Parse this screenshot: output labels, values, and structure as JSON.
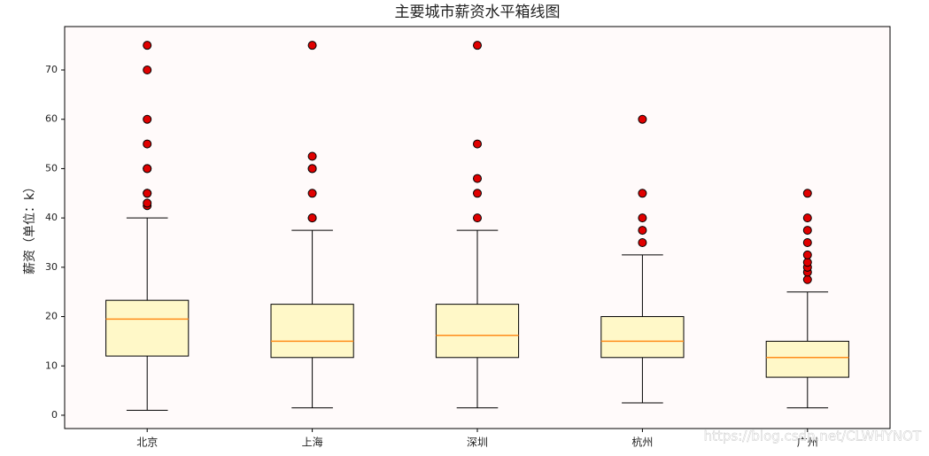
{
  "chart_data": {
    "type": "box",
    "title": "主要城市薪资水平箱线图",
    "ylabel": "薪资（单位：k）",
    "categories": [
      "北京",
      "上海",
      "深圳",
      "杭州",
      "广州"
    ],
    "boxes": [
      {
        "min": 1,
        "q1": 12,
        "median": 19.5,
        "q3": 23.3,
        "max": 40,
        "outliers": [
          42.5,
          43,
          45,
          45,
          50,
          50,
          55,
          60,
          70,
          75
        ]
      },
      {
        "min": 1.5,
        "q1": 11.7,
        "median": 15,
        "q3": 22.5,
        "max": 37.5,
        "outliers": [
          40,
          40,
          45,
          50,
          50,
          52.5,
          75
        ]
      },
      {
        "min": 1.5,
        "q1": 11.7,
        "median": 16.2,
        "q3": 22.5,
        "max": 37.5,
        "outliers": [
          40,
          45,
          48,
          55,
          75
        ]
      },
      {
        "min": 2.5,
        "q1": 11.7,
        "median": 15,
        "q3": 20,
        "max": 32.5,
        "outliers": [
          35,
          37.5,
          40,
          45,
          60
        ]
      },
      {
        "min": 1.5,
        "q1": 7.7,
        "median": 11.7,
        "q3": 15,
        "max": 25,
        "outliers": [
          27.5,
          29,
          30,
          31,
          32.5,
          35,
          37.5,
          40,
          45
        ]
      }
    ],
    "box_color": "#fff8c8",
    "median_color": "#ff8c1a",
    "outlier_color": "#e00000",
    "background": "#fffafa",
    "ylim": [
      -2.7,
      78.8
    ],
    "yticks": [
      0,
      10,
      20,
      30,
      40,
      50,
      60,
      70
    ],
    "watermark": "https://blog.csdn.net/CLWHYNOT"
  }
}
